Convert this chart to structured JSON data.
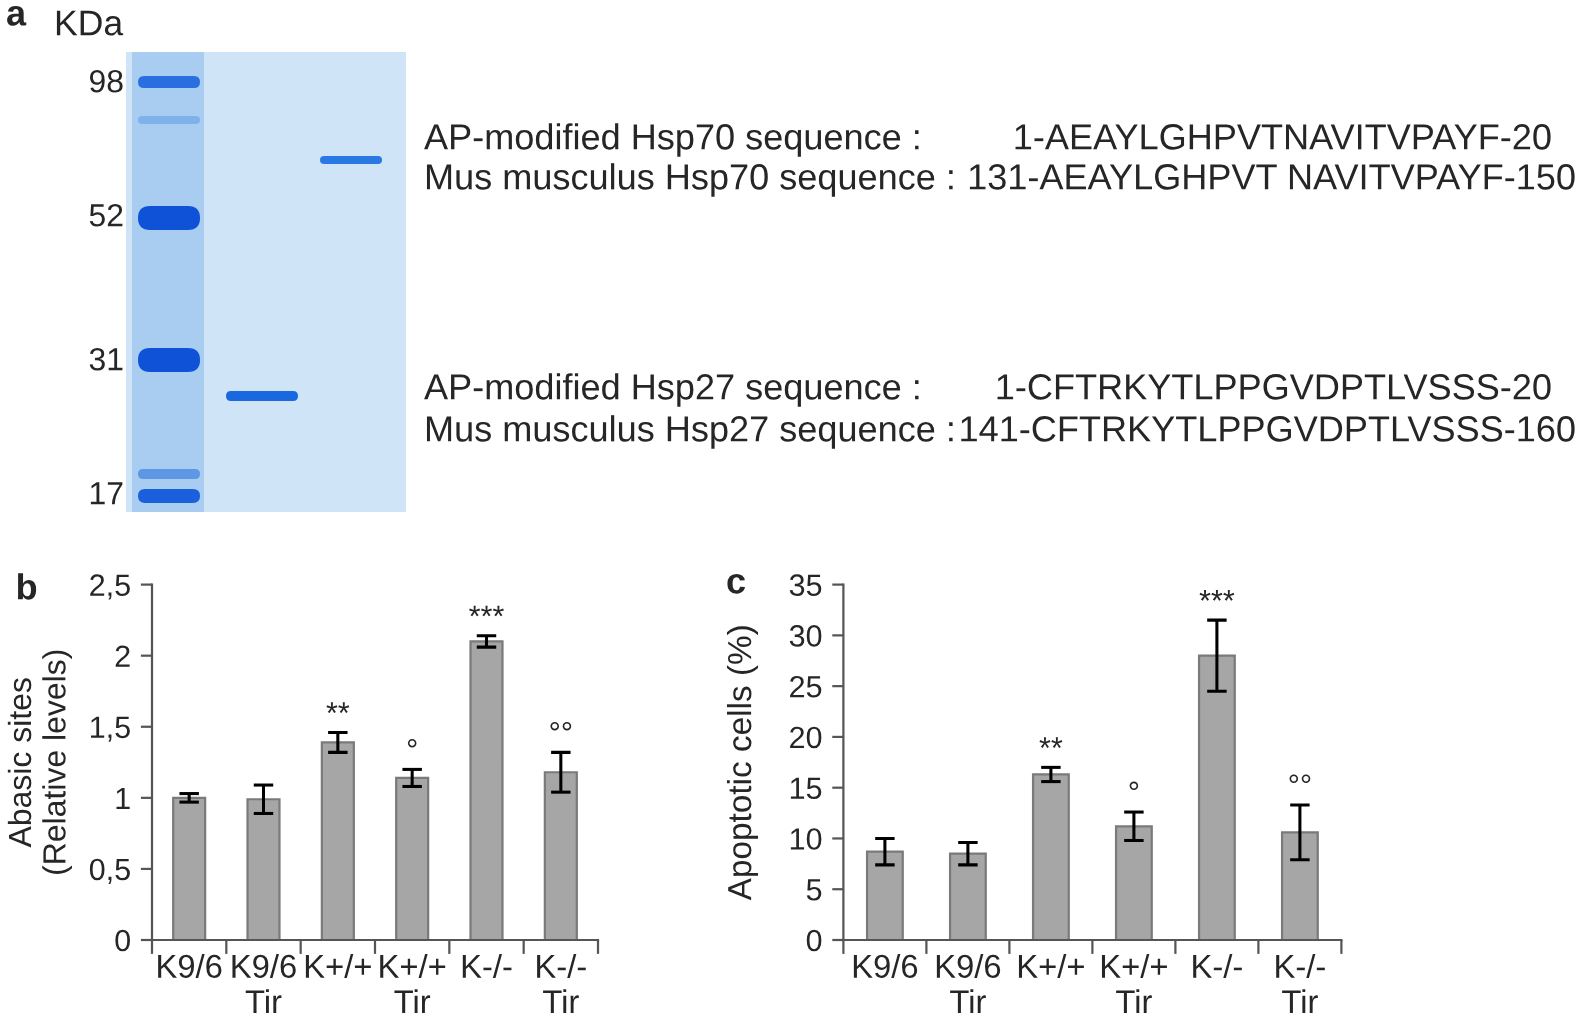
{
  "chart_data": [
    {
      "type": "other",
      "title": "a",
      "annotations": [
        "KDa",
        "98",
        "52",
        "31",
        "17",
        "AP-modified Hsp70 sequence :",
        "1-AEAYLGHPVTNAVITVPAYF-20",
        "Mus musculus Hsp70 sequence :",
        "131-AEAYLGHPVT NAVITVPAYF-150",
        "AP-modified Hsp27 sequence :",
        "1-CFTRKYTLPPGVDPTLVSSS-20",
        "Mus musculus Hsp27 sequence :",
        "141-CFTRKYTLPPGVDPTLVSSS-160"
      ]
    },
    {
      "type": "bar",
      "title": "b",
      "ylabel": "Abasic sites\n(Relative levels)",
      "categories": [
        "K9/6",
        "K9/6\nTir",
        "K+/+",
        "K+/+\nTir",
        "K-/-",
        "K-/-\nTir"
      ],
      "values": [
        1.0,
        0.99,
        1.39,
        1.14,
        2.1,
        1.18
      ],
      "errors": [
        0.03,
        0.1,
        0.07,
        0.06,
        0.04,
        0.14
      ],
      "color": "#a6a6a6",
      "ylim": [
        0,
        2.5
      ],
      "yticks": [
        0,
        {
          "value": 0.5,
          "label": "0,5"
        },
        1,
        {
          "value": 1.5,
          "label": "1,5"
        },
        2,
        {
          "value": 2.5,
          "label": "2,5"
        }
      ],
      "annotations": [
        {
          "text": "**",
          "x": "K+/+",
          "y": 1.46
        },
        {
          "text": "°",
          "x": "K+/+\nTir",
          "y": 1.2
        },
        {
          "text": "***",
          "x": "K-/-",
          "y": 2.14
        },
        {
          "text": "°°",
          "x": "K-/-\nTir",
          "y": 1.32
        }
      ]
    },
    {
      "type": "bar",
      "title": "c",
      "ylabel": "Apoptotic cells (%)",
      "categories": [
        "K9/6",
        "K9/6\nTir",
        "K+/+",
        "K+/+\nTir",
        "K-/-",
        "K-/-\nTir"
      ],
      "values": [
        8.7,
        8.5,
        16.3,
        11.2,
        28.0,
        10.6
      ],
      "errors": [
        1.3,
        1.1,
        0.7,
        1.4,
        3.5,
        2.7
      ],
      "color": "#a6a6a6",
      "ylim": [
        0,
        35
      ],
      "yticks": [
        0,
        5,
        10,
        15,
        20,
        25,
        30,
        35
      ],
      "annotations": [
        {
          "text": "**",
          "x": "K+/+",
          "y": 17.0
        },
        {
          "text": "°",
          "x": "K+/+\nTir",
          "y": 12.6
        },
        {
          "text": "***",
          "x": "K-/-",
          "y": 31.5
        },
        {
          "text": "°°",
          "x": "K-/-\nTir",
          "y": 13.3
        }
      ]
    }
  ]
}
